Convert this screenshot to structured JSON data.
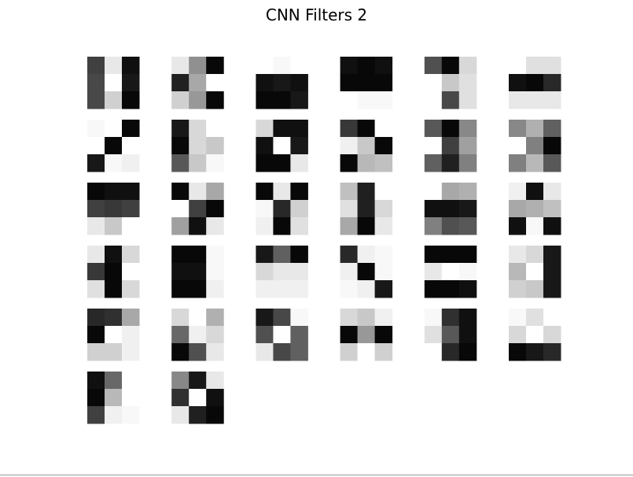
{
  "chart_data": {
    "type": "heatmap",
    "title": "CNN Filters 2",
    "colormap": "gray",
    "value_range": [
      0,
      255
    ],
    "filter_shape": [
      3,
      3
    ],
    "grid": {
      "rows": 6,
      "cols": 6
    },
    "filter_count": 32,
    "filters": [
      [
        [
          64,
          232,
          16
        ],
        [
          72,
          255,
          24
        ],
        [
          72,
          208,
          8
        ]
      ],
      [
        [
          232,
          144,
          8
        ],
        [
          32,
          168,
          255
        ],
        [
          208,
          152,
          8
        ]
      ],
      [
        [
          255,
          248,
          255
        ],
        [
          16,
          24,
          16
        ],
        [
          8,
          8,
          24
        ]
      ],
      [
        [
          16,
          8,
          16
        ],
        [
          8,
          8,
          8
        ],
        [
          255,
          248,
          248
        ]
      ],
      [
        [
          80,
          8,
          216
        ],
        [
          255,
          200,
          224
        ],
        [
          255,
          72,
          224
        ]
      ],
      [
        [
          255,
          224,
          224
        ],
        [
          16,
          8,
          40
        ],
        [
          232,
          232,
          232
        ]
      ],
      [
        [
          248,
          255,
          8
        ],
        [
          255,
          8,
          255
        ],
        [
          24,
          248,
          240
        ]
      ],
      [
        [
          24,
          216,
          255
        ],
        [
          8,
          216,
          200
        ],
        [
          88,
          200,
          248
        ]
      ],
      [
        [
          216,
          16,
          16
        ],
        [
          16,
          255,
          24
        ],
        [
          8,
          8,
          232
        ]
      ],
      [
        [
          56,
          8,
          255
        ],
        [
          240,
          200,
          8
        ],
        [
          8,
          184,
          192
        ]
      ],
      [
        [
          88,
          8,
          136
        ],
        [
          255,
          64,
          160
        ],
        [
          96,
          32,
          128
        ]
      ],
      [
        [
          136,
          176,
          96
        ],
        [
          255,
          128,
          8
        ],
        [
          128,
          184,
          88
        ]
      ],
      [
        [
          8,
          16,
          16
        ],
        [
          64,
          56,
          64
        ],
        [
          232,
          200,
          255
        ]
      ],
      [
        [
          8,
          232,
          168
        ],
        [
          255,
          64,
          8
        ],
        [
          160,
          16,
          232
        ]
      ],
      [
        [
          8,
          232,
          8
        ],
        [
          248,
          40,
          208
        ],
        [
          240,
          8,
          224
        ]
      ],
      [
        [
          192,
          32,
          255
        ],
        [
          224,
          32,
          216
        ],
        [
          168,
          8,
          232
        ]
      ],
      [
        [
          255,
          168,
          176
        ],
        [
          16,
          16,
          24
        ],
        [
          128,
          80,
          88
        ]
      ],
      [
        [
          240,
          16,
          232
        ],
        [
          168,
          176,
          192
        ],
        [
          16,
          248,
          16
        ]
      ],
      [
        [
          232,
          16,
          216
        ],
        [
          56,
          8,
          255
        ],
        [
          224,
          8,
          216
        ]
      ],
      [
        [
          8,
          8,
          248
        ],
        [
          16,
          16,
          248
        ],
        [
          8,
          8,
          240
        ]
      ],
      [
        [
          24,
          96,
          8
        ],
        [
          216,
          232,
          232
        ],
        [
          240,
          240,
          240
        ]
      ],
      [
        [
          40,
          240,
          248
        ],
        [
          240,
          8,
          248
        ],
        [
          248,
          240,
          24
        ]
      ],
      [
        [
          8,
          8,
          8
        ],
        [
          232,
          255,
          248
        ],
        [
          8,
          8,
          16
        ]
      ],
      [
        [
          232,
          216,
          24
        ],
        [
          184,
          255,
          24
        ],
        [
          208,
          200,
          24
        ]
      ],
      [
        [
          40,
          48,
          168
        ],
        [
          8,
          255,
          240
        ],
        [
          208,
          208,
          240
        ]
      ],
      [
        [
          216,
          255,
          176
        ],
        [
          104,
          240,
          216
        ],
        [
          8,
          80,
          232
        ]
      ],
      [
        [
          24,
          72,
          248
        ],
        [
          80,
          255,
          96
        ],
        [
          232,
          72,
          96
        ]
      ],
      [
        [
          216,
          200,
          240
        ],
        [
          8,
          152,
          8
        ],
        [
          208,
          255,
          208
        ]
      ],
      [
        [
          248,
          48,
          16
        ],
        [
          224,
          88,
          16
        ],
        [
          255,
          40,
          8
        ]
      ],
      [
        [
          248,
          224,
          255
        ],
        [
          216,
          255,
          216
        ],
        [
          8,
          24,
          40
        ]
      ],
      [
        [
          16,
          104,
          255
        ],
        [
          8,
          184,
          255
        ],
        [
          64,
          240,
          248
        ]
      ],
      [
        [
          136,
          24,
          232
        ],
        [
          48,
          255,
          16
        ],
        [
          232,
          32,
          8
        ]
      ]
    ]
  }
}
